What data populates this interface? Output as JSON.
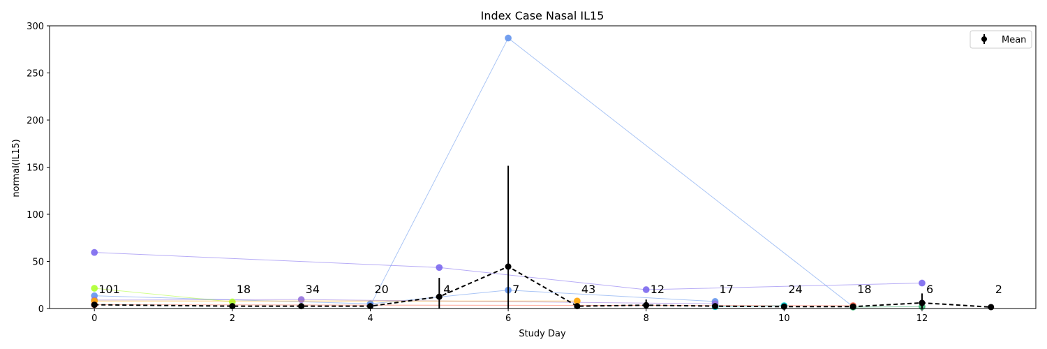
{
  "chart_data": {
    "type": "line",
    "title": "Index Case Nasal IL15",
    "xlabel": "Study Day",
    "ylabel": "normal(IL15)",
    "xlim": [
      -0.65,
      13.65
    ],
    "ylim": [
      0,
      300
    ],
    "xticks": [
      0,
      2,
      4,
      6,
      8,
      10,
      12
    ],
    "yticks": [
      0,
      50,
      100,
      150,
      200,
      250,
      300
    ],
    "grid": false,
    "legend": {
      "position": "top-right",
      "entries": [
        "Mean"
      ]
    },
    "series": [
      {
        "color": "#7b68ee",
        "x": [
          0,
          5,
          8,
          12
        ],
        "y": [
          59.5,
          43.5,
          20,
          27
        ]
      },
      {
        "color": "#6495ed",
        "x": [
          4,
          6,
          11
        ],
        "y": [
          3,
          287,
          2
        ]
      },
      {
        "color": "#6495ed",
        "x": [
          0,
          4,
          6,
          9
        ],
        "y": [
          13.5,
          5,
          19.5,
          7.5
        ]
      },
      {
        "color": "#9370db",
        "x": [
          0,
          3,
          9
        ],
        "y": [
          9,
          9.5,
          5
        ]
      },
      {
        "color": "#adff2f",
        "x": [
          0,
          2
        ],
        "y": [
          21.5,
          7
        ]
      },
      {
        "color": "#ffa500",
        "x": [
          0,
          7
        ],
        "y": [
          8,
          8
        ]
      },
      {
        "color": "#ff6347",
        "x": [
          0,
          11
        ],
        "y": [
          4,
          3
        ]
      },
      {
        "color": "#00ced1",
        "x": [
          9,
          10
        ],
        "y": [
          2,
          3
        ]
      },
      {
        "color": "#3cb371",
        "x": [
          11,
          12
        ],
        "y": [
          1.5,
          2
        ]
      }
    ],
    "mean": {
      "name": "Mean",
      "x": [
        0,
        2,
        3,
        4,
        5,
        6,
        7,
        8,
        9,
        10,
        11,
        12,
        13
      ],
      "y": [
        4,
        2.5,
        2.5,
        2.5,
        12.5,
        44.5,
        2.5,
        3.5,
        2.5,
        2,
        2,
        6,
        1.5
      ],
      "err": [
        3,
        1.5,
        2,
        2,
        20,
        107,
        1.5,
        6,
        1.5,
        1,
        1,
        10,
        0
      ]
    },
    "counts": [
      {
        "x": 0,
        "label": "101"
      },
      {
        "x": 2,
        "label": "18"
      },
      {
        "x": 3,
        "label": "34"
      },
      {
        "x": 4,
        "label": "20"
      },
      {
        "x": 5,
        "label": "4"
      },
      {
        "x": 6,
        "label": "7"
      },
      {
        "x": 7,
        "label": "43"
      },
      {
        "x": 8,
        "label": "12"
      },
      {
        "x": 9,
        "label": "17"
      },
      {
        "x": 10,
        "label": "24"
      },
      {
        "x": 11,
        "label": "18"
      },
      {
        "x": 12,
        "label": "6"
      },
      {
        "x": 13,
        "label": "2"
      }
    ]
  }
}
